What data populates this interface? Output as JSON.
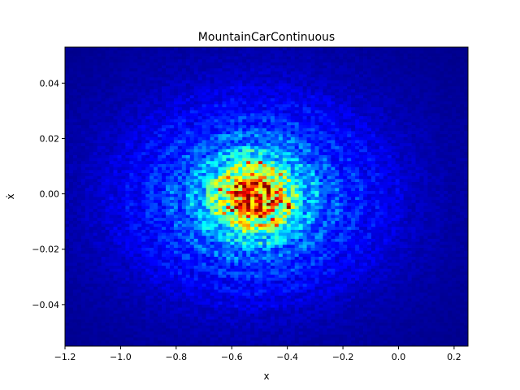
{
  "chart_data": {
    "type": "heatmap",
    "title": "MountainCarContinuous",
    "xlabel": "x",
    "ylabel": "ẋ",
    "xlim": [
      -1.2,
      0.25
    ],
    "ylim": [
      -0.055,
      0.053
    ],
    "x_ticks": [
      -1.2,
      -1.0,
      -0.8,
      -0.6,
      -0.4,
      -0.2,
      0.0,
      0.2
    ],
    "x_tick_labels": [
      "−1.2",
      "−1.0",
      "−0.8",
      "−0.6",
      "−0.4",
      "−0.2",
      "0.0",
      "0.2"
    ],
    "y_ticks": [
      -0.04,
      -0.02,
      0.0,
      0.02,
      0.04
    ],
    "y_tick_labels": [
      "−0.04",
      "−0.02",
      "0.00",
      "0.02",
      "0.04"
    ],
    "bins": {
      "x": 100,
      "y": 100
    },
    "colormap": "jet",
    "grid": false,
    "density_model": {
      "center": {
        "x": -0.52,
        "y": -0.001
      },
      "core_sigma": {
        "x": 0.13,
        "y": 0.012
      },
      "halo_sigma": {
        "x": 0.42,
        "y": 0.032
      },
      "ring_period": 0.09,
      "peak_level": 1.0
    }
  }
}
